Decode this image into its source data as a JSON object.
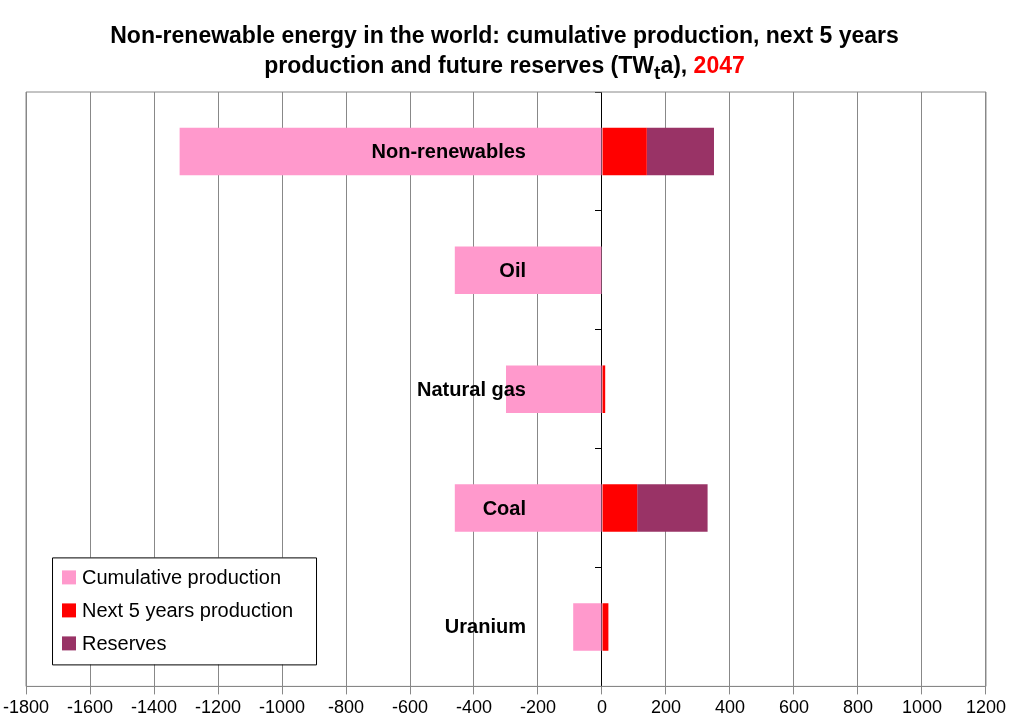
{
  "chart_data": {
    "type": "bar",
    "orientation": "horizontal",
    "stacked": true,
    "title": "Non-renewable energy in the world: cumulative production, next 5 years production and future reserves (TW$_{t}$a),",
    "subtitle": "2047",
    "categories": [
      "Non-renewables",
      "Oil",
      "Natural gas",
      "Coal",
      "Uranium"
    ],
    "series": [
      {
        "name": "Cumulative production",
        "color": "#ff99cc",
        "values": [
          -1320,
          -460,
          -300,
          -460,
          -90
        ]
      },
      {
        "name": "Next 5 years production",
        "color": "#ff0000",
        "values": [
          140,
          0,
          10,
          110,
          20
        ]
      },
      {
        "name": "Reserves",
        "color": "#993366",
        "values": [
          210,
          null,
          null,
          220,
          null
        ]
      }
    ],
    "xlim": [
      -1800,
      1200
    ],
    "xticks": [
      -1800,
      -1600,
      -1400,
      -1200,
      -1000,
      -800,
      -600,
      -400,
      -200,
      0,
      200,
      400,
      600,
      800,
      1000,
      1200
    ],
    "grid": "x",
    "legend": "bottom left"
  }
}
